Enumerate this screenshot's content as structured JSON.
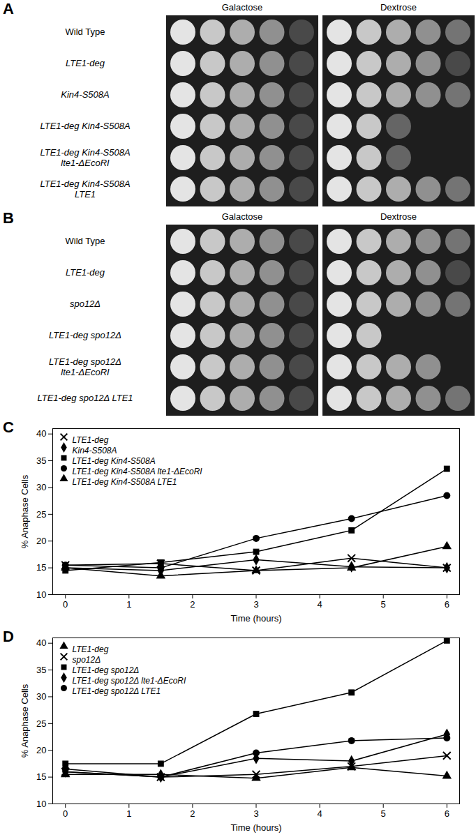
{
  "chart_data": [
    {
      "type": "spot_assay",
      "title": "A",
      "categories": [
        "Wild Type",
        "LTE1-deg",
        "Kin4-S508A",
        "LTE1-deg Kin4-S508A",
        "LTE1-deg Kin4-S508A lte1-ΔEcoRI",
        "LTE1-deg Kin4-S508A LTE1"
      ],
      "series": [
        {
          "name": "Galactose",
          "values": [
            4.5,
            4.5,
            4.5,
            4.5,
            4.5,
            4.5
          ]
        },
        {
          "name": "Dextrose",
          "values": [
            5,
            4.5,
            5,
            2.5,
            2.5,
            5
          ]
        }
      ]
    },
    {
      "type": "spot_assay",
      "title": "B",
      "categories": [
        "Wild Type",
        "LTE1-deg",
        "spo12Δ",
        "LTE1-deg spo12Δ",
        "LTE1-deg spo12Δ lte1-ΔEcoRI",
        "LTE1-deg spo12Δ LTE1"
      ],
      "series": [
        {
          "name": "Galactose",
          "values": [
            4.5,
            4.5,
            4.5,
            4.5,
            4.5,
            4.5
          ]
        },
        {
          "name": "Dextrose",
          "values": [
            5,
            4.5,
            5,
            2,
            4,
            5
          ]
        }
      ]
    },
    {
      "type": "line",
      "title": "C",
      "x": [
        0,
        1.5,
        3,
        4.5,
        6
      ],
      "xlim": [
        -0.2,
        6.2
      ],
      "xticks": [
        0,
        1,
        2,
        3,
        4,
        5,
        6
      ],
      "ylim": [
        10,
        41
      ],
      "yticks": [
        10,
        15,
        20,
        25,
        30,
        35,
        40
      ],
      "x_label": "Time (hours)",
      "y_label": "% Anaphase Cells",
      "legend": "top-left",
      "grid": false,
      "series": [
        {
          "name": "LTE1-deg",
          "color": "#000000",
          "marker": "x",
          "values": [
            15.5,
            15.8,
            14.5,
            16.8,
            15
          ]
        },
        {
          "name": "Kin4-S508A",
          "color": "#000000",
          "marker": "diamond",
          "values": [
            15,
            14.5,
            16.5,
            15.2,
            15
          ]
        },
        {
          "name": "LTE1-deg Kin4-S508A",
          "color": "#000000",
          "marker": "square",
          "values": [
            14.5,
            16,
            18,
            22,
            33.5
          ]
        },
        {
          "name": "LTE1-deg Kin4-S508A lte1-ΔEcoRI",
          "color": "#000000",
          "marker": "circle",
          "values": [
            15.5,
            15,
            20.5,
            24.2,
            28.5
          ]
        },
        {
          "name": "LTE1-deg Kin4-S508A LTE1",
          "color": "#000000",
          "marker": "triangle",
          "values": [
            15,
            13.5,
            14.5,
            15,
            19
          ]
        }
      ]
    },
    {
      "type": "line",
      "title": "D",
      "x": [
        0,
        1.5,
        3,
        4.5,
        6
      ],
      "xlim": [
        -0.2,
        6.2
      ],
      "xticks": [
        0,
        1,
        2,
        3,
        4,
        5,
        6
      ],
      "ylim": [
        10,
        41
      ],
      "yticks": [
        10,
        15,
        20,
        25,
        30,
        35,
        40
      ],
      "x_label": "Time (hours)",
      "y_label": "% Anaphase Cells",
      "legend": "top-left",
      "grid": false,
      "series": [
        {
          "name": "LTE1-deg",
          "color": "#000000",
          "marker": "triangle",
          "values": [
            15.5,
            15.5,
            14.8,
            16.8,
            15.2
          ]
        },
        {
          "name": "spo12Δ",
          "color": "#000000",
          "marker": "x",
          "values": [
            16,
            15,
            15.5,
            17,
            19
          ]
        },
        {
          "name": "LTE1-deg spo12Δ",
          "color": "#000000",
          "marker": "square",
          "values": [
            17.5,
            17.5,
            26.8,
            30.8,
            40.5
          ]
        },
        {
          "name": "LTE1-deg spo12Δ lte1-ΔEcoRI",
          "color": "#000000",
          "marker": "diamond",
          "values": [
            16,
            15,
            18.5,
            18,
            23
          ]
        },
        {
          "name": "LTE1-deg spo12Δ LTE1",
          "color": "#000000",
          "marker": "circle",
          "values": [
            16.5,
            15,
            19.5,
            21.8,
            22.3
          ]
        }
      ]
    }
  ]
}
